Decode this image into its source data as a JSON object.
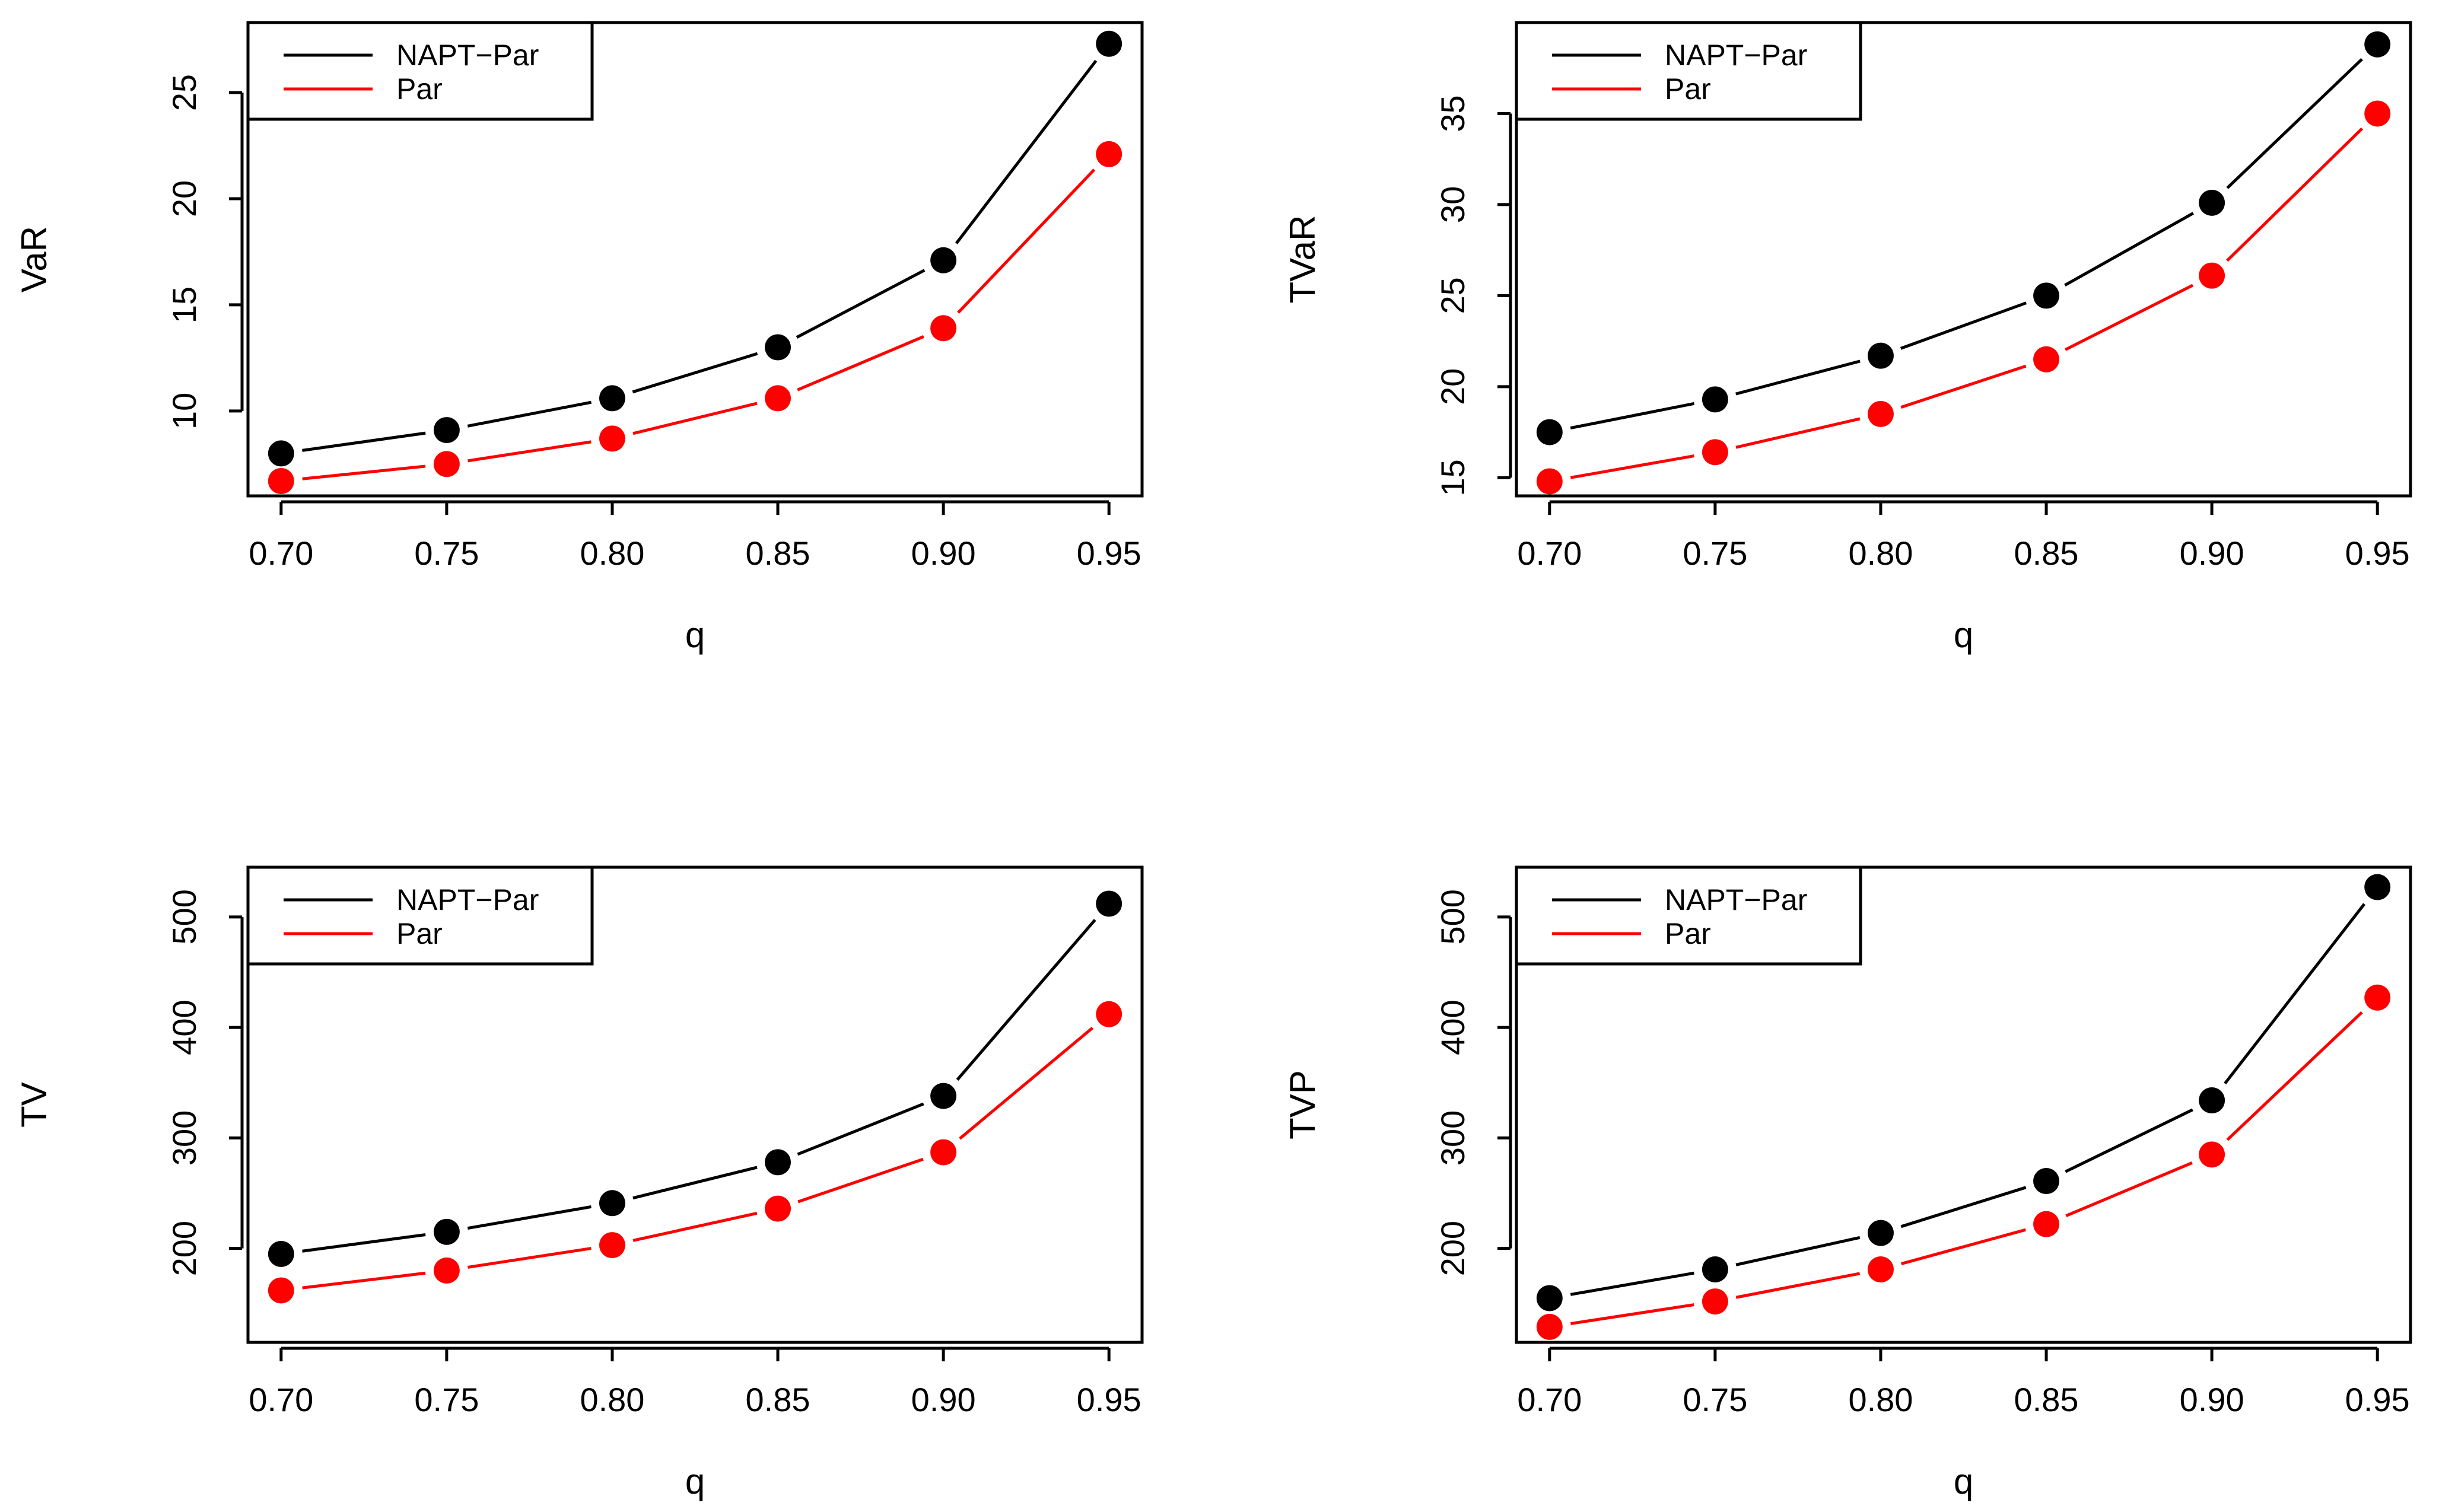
{
  "figure": {
    "colors": {
      "napt_par": "#000000",
      "par": "#ff0000",
      "axis": "#000000",
      "background": "#ffffff"
    }
  },
  "chart_data": [
    {
      "type": "line",
      "panel": "top-left",
      "x": [
        0.7,
        0.75,
        0.8,
        0.85,
        0.9,
        0.95
      ],
      "xtick_labels": [
        "0.70",
        "0.75",
        "0.80",
        "0.85",
        "0.90",
        "0.95"
      ],
      "xlim": [
        0.69,
        0.96
      ],
      "xlabel": "q",
      "ylabel": "VaR",
      "yticks": [
        10,
        15,
        20,
        25
      ],
      "ytick_labels": [
        "10",
        "15",
        "20",
        "25"
      ],
      "ylim": [
        6.0,
        28.3
      ],
      "legend_position": "top-left",
      "series": [
        {
          "name": "NAPT−Par",
          "color": "#000000",
          "values": [
            8.0,
            9.1,
            10.6,
            13.0,
            17.1,
            27.3
          ]
        },
        {
          "name": "Par",
          "color": "#ff0000",
          "values": [
            6.7,
            7.5,
            8.7,
            10.6,
            13.9,
            22.1
          ]
        }
      ]
    },
    {
      "type": "line",
      "panel": "top-right",
      "x": [
        0.7,
        0.75,
        0.8,
        0.85,
        0.9,
        0.95
      ],
      "xtick_labels": [
        "0.70",
        "0.75",
        "0.80",
        "0.85",
        "0.90",
        "0.95"
      ],
      "xlim": [
        0.69,
        0.96
      ],
      "xlabel": "q",
      "ylabel": "TVaR",
      "yticks": [
        15,
        20,
        25,
        30,
        35
      ],
      "ytick_labels": [
        "15",
        "20",
        "25",
        "30",
        "35"
      ],
      "ylim": [
        14.0,
        40.0
      ],
      "legend_position": "top-left",
      "series": [
        {
          "name": "NAPT−Par",
          "color": "#000000",
          "values": [
            17.5,
            19.3,
            21.7,
            25.0,
            30.1,
            38.8
          ]
        },
        {
          "name": "Par",
          "color": "#ff0000",
          "values": [
            14.8,
            16.4,
            18.5,
            21.5,
            26.1,
            35.0
          ]
        }
      ]
    },
    {
      "type": "line",
      "panel": "bottom-left",
      "x": [
        0.7,
        0.75,
        0.8,
        0.85,
        0.9,
        0.95
      ],
      "xtick_labels": [
        "0.70",
        "0.75",
        "0.80",
        "0.85",
        "0.90",
        "0.95"
      ],
      "xlim": [
        0.69,
        0.96
      ],
      "xlabel": "q",
      "ylabel": "TV",
      "yticks": [
        200,
        300,
        400,
        500
      ],
      "ytick_labels": [
        "200",
        "300",
        "400",
        "500"
      ],
      "ylim": [
        115,
        545
      ],
      "legend_position": "top-left",
      "series": [
        {
          "name": "NAPT−Par",
          "color": "#000000",
          "values": [
            195,
            215,
            241,
            278,
            338,
            512
          ]
        },
        {
          "name": "Par",
          "color": "#ff0000",
          "values": [
            162,
            180,
            203,
            236,
            287,
            412
          ]
        }
      ]
    },
    {
      "type": "line",
      "panel": "bottom-right",
      "x": [
        0.7,
        0.75,
        0.8,
        0.85,
        0.9,
        0.95
      ],
      "xtick_labels": [
        "0.70",
        "0.75",
        "0.80",
        "0.85",
        "0.90",
        "0.95"
      ],
      "xlim": [
        0.69,
        0.96
      ],
      "xlabel": "q",
      "ylabel": "TVP",
      "yticks": [
        200,
        300,
        400,
        500
      ],
      "ytick_labels": [
        "200",
        "300",
        "400",
        "500"
      ],
      "ylim": [
        115,
        545
      ],
      "legend_position": "top-left",
      "series": [
        {
          "name": "NAPT−Par",
          "color": "#000000",
          "values": [
            155,
            181,
            214,
            261,
            334,
            527
          ]
        },
        {
          "name": "Par",
          "color": "#ff0000",
          "values": [
            129,
            152,
            181,
            222,
            285,
            427
          ]
        }
      ]
    }
  ]
}
